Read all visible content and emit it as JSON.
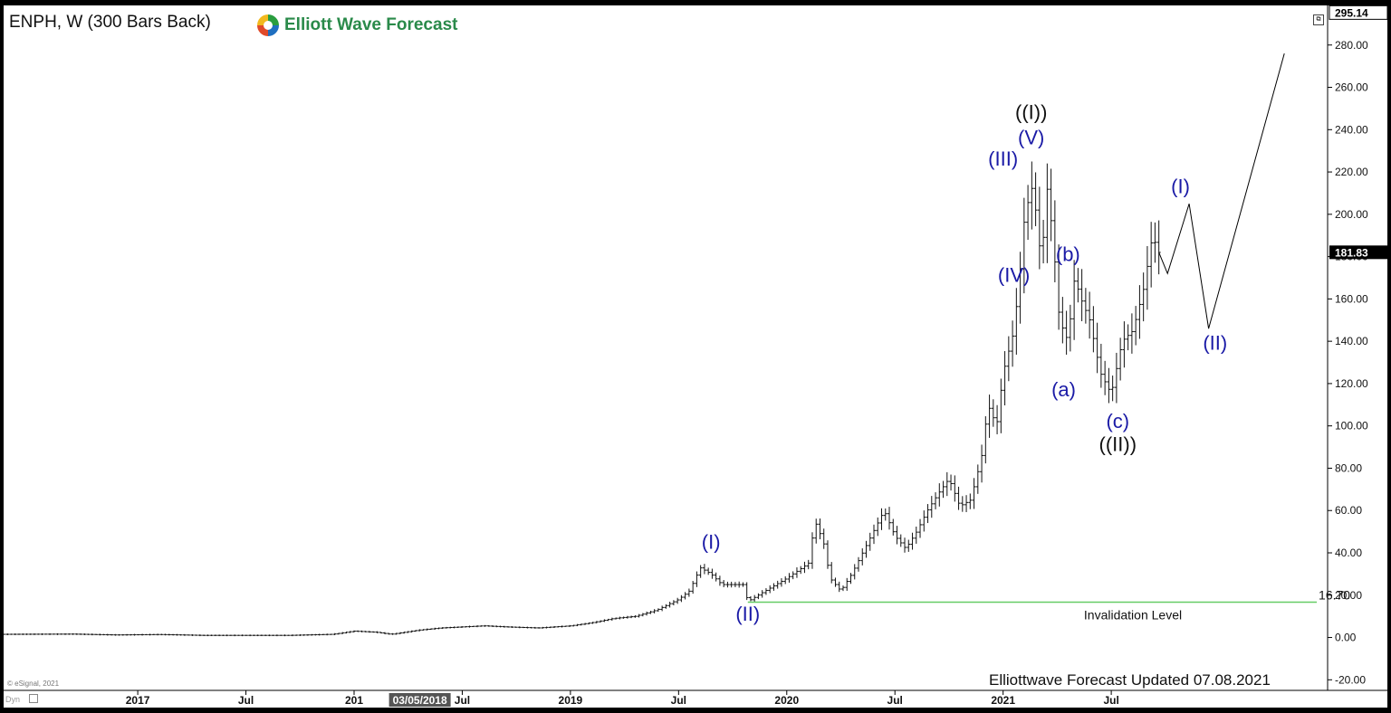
{
  "header": {
    "title": "ENPH, W (300 Bars Back)",
    "logo_text": "Elliott Wave Forecast"
  },
  "footer": {
    "updated": "Elliottwave Forecast Updated 07.08.2021",
    "source": "© eSignal, 2021",
    "dyn": "Dyn"
  },
  "colors": {
    "wave_blue": "#1a1aa6",
    "wave_black": "#111111",
    "invalidation_line": "#66cc66",
    "price_bars": "#111111"
  },
  "chart_data": {
    "type": "ohlc-bar",
    "symbol": "ENPH",
    "interval": "W",
    "ylim": [
      -25,
      297
    ],
    "y_ticks": [
      "-20.00",
      "0.00",
      "20.00",
      "40.00",
      "60.00",
      "80.00",
      "100.00",
      "120.00",
      "140.00",
      "160.00",
      "180.00",
      "200.00",
      "220.00",
      "240.00",
      "260.00",
      "280.00"
    ],
    "y_tick_values": [
      -20,
      0,
      20,
      40,
      60,
      80,
      100,
      120,
      140,
      160,
      180,
      200,
      220,
      240,
      260,
      280
    ],
    "x_ticks": [
      "2017",
      "Jul",
      "201",
      "Jul",
      "2019",
      "Jul",
      "2020",
      "Jul",
      "2021",
      "Jul"
    ],
    "x_tick_dates": [
      2017.0,
      2017.5,
      2018.0,
      2018.5,
      2019.0,
      2019.5,
      2020.0,
      2020.5,
      2021.0,
      2021.5
    ],
    "xlim": [
      2016.38,
      2022.5
    ],
    "crosshair_date_label": "03/05/2018",
    "crosshair_date_value": 2018.17,
    "price_labels": {
      "high": "295.14",
      "last": "181.83"
    },
    "price_label_values": {
      "high": 295.14,
      "last": 181.83
    },
    "price_path": [
      [
        2016.38,
        1.5
      ],
      [
        2016.7,
        1.6
      ],
      [
        2016.9,
        1.2
      ],
      [
        2017.1,
        1.4
      ],
      [
        2017.3,
        1.0
      ],
      [
        2017.5,
        1.0
      ],
      [
        2017.7,
        1.0
      ],
      [
        2017.9,
        1.5
      ],
      [
        2018.0,
        3.0
      ],
      [
        2018.1,
        2.5
      ],
      [
        2018.17,
        1.5
      ],
      [
        2018.3,
        3.5
      ],
      [
        2018.4,
        4.5
      ],
      [
        2018.5,
        5.0
      ],
      [
        2018.6,
        5.5
      ],
      [
        2018.7,
        5.0
      ],
      [
        2018.85,
        4.5
      ],
      [
        2019.0,
        5.5
      ],
      [
        2019.1,
        7.0
      ],
      [
        2019.2,
        9.0
      ],
      [
        2019.3,
        10.0
      ],
      [
        2019.4,
        13.0
      ],
      [
        2019.5,
        18.0
      ],
      [
        2019.55,
        22.0
      ],
      [
        2019.6,
        33.0
      ],
      [
        2019.65,
        30.0
      ],
      [
        2019.7,
        25.0
      ],
      [
        2019.8,
        25.0
      ],
      [
        2019.82,
        17.0
      ],
      [
        2019.9,
        22.0
      ],
      [
        2020.0,
        28.0
      ],
      [
        2020.1,
        35.0
      ],
      [
        2020.13,
        55.0
      ],
      [
        2020.17,
        45.0
      ],
      [
        2020.2,
        28.0
      ],
      [
        2020.25,
        22.0
      ],
      [
        2020.3,
        30.0
      ],
      [
        2020.4,
        50.0
      ],
      [
        2020.45,
        60.0
      ],
      [
        2020.5,
        48.0
      ],
      [
        2020.55,
        42.0
      ],
      [
        2020.6,
        50.0
      ],
      [
        2020.65,
        60.0
      ],
      [
        2020.7,
        68.0
      ],
      [
        2020.75,
        75.0
      ],
      [
        2020.8,
        62.0
      ],
      [
        2020.85,
        65.0
      ],
      [
        2020.9,
        85.0
      ],
      [
        2020.93,
        110.0
      ],
      [
        2020.97,
        100.0
      ],
      [
        2021.0,
        125.0
      ],
      [
        2021.05,
        145.0
      ],
      [
        2021.08,
        175.0
      ],
      [
        2021.1,
        200.0
      ],
      [
        2021.14,
        215.0
      ],
      [
        2021.16,
        190.0
      ],
      [
        2021.18,
        178.0
      ],
      [
        2021.2,
        215.0
      ],
      [
        2021.23,
        190.0
      ],
      [
        2021.26,
        150.0
      ],
      [
        2021.3,
        140.0
      ],
      [
        2021.33,
        170.0
      ],
      [
        2021.36,
        160.0
      ],
      [
        2021.4,
        150.0
      ],
      [
        2021.45,
        125.0
      ],
      [
        2021.5,
        115.0
      ],
      [
        2021.55,
        140.0
      ],
      [
        2021.6,
        145.0
      ],
      [
        2021.65,
        165.0
      ],
      [
        2021.69,
        190.0
      ],
      [
        2021.72,
        182.0
      ]
    ],
    "projection": [
      [
        2021.72,
        182.0
      ],
      [
        2021.76,
        172.0
      ],
      [
        2021.86,
        205.0
      ],
      [
        2021.95,
        146.0
      ],
      [
        2022.3,
        276.0
      ]
    ],
    "invalidation": {
      "value": 16.7,
      "label": "16.70",
      "text": "Invalidation Level",
      "x_start": 2019.82,
      "x_end": 2022.45,
      "text_at": 2021.6
    },
    "wave_labels": [
      {
        "text": "(I)",
        "x": 2019.65,
        "y": 42,
        "color": "blue"
      },
      {
        "text": "(II)",
        "x": 2019.82,
        "y": 8,
        "color": "blue"
      },
      {
        "text": "(III)",
        "x": 2021.0,
        "y": 223,
        "color": "blue"
      },
      {
        "text": "(IV)",
        "x": 2021.05,
        "y": 168,
        "color": "blue"
      },
      {
        "text": "(V)",
        "x": 2021.13,
        "y": 233,
        "color": "blue"
      },
      {
        "text": "((I))",
        "x": 2021.13,
        "y": 245,
        "color": "black"
      },
      {
        "text": "(a)",
        "x": 2021.28,
        "y": 114,
        "color": "blue"
      },
      {
        "text": "(b)",
        "x": 2021.3,
        "y": 178,
        "color": "blue"
      },
      {
        "text": "(c)",
        "x": 2021.53,
        "y": 99,
        "color": "blue"
      },
      {
        "text": "((II))",
        "x": 2021.53,
        "y": 88,
        "color": "black"
      },
      {
        "text": "(I)",
        "x": 2021.82,
        "y": 210,
        "color": "blue"
      },
      {
        "text": "(II)",
        "x": 2021.98,
        "y": 136,
        "color": "blue"
      }
    ]
  }
}
